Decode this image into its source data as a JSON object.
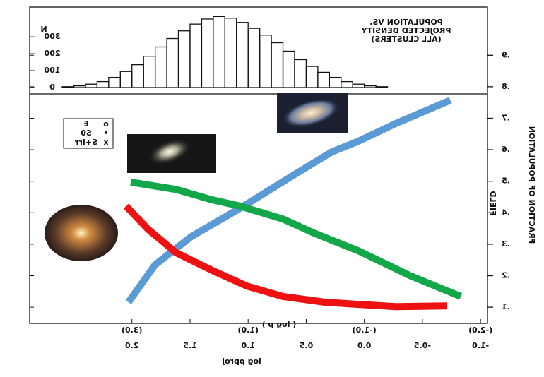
{
  "chart_data": [
    {
      "type": "histogram",
      "title_lines": [
        "POPULATION VS.",
        "PROJECTED DENSITY",
        "(ALL CLUSTERS)"
      ],
      "y_label": "N",
      "bins": [
        -0.2,
        -0.1,
        0.0,
        0.1,
        0.2,
        0.3,
        0.4,
        0.5,
        0.6,
        0.7,
        0.8,
        0.9,
        1.0,
        1.1,
        1.2,
        1.3,
        1.4,
        1.5,
        1.6,
        1.7,
        1.8,
        1.9,
        2.0,
        2.1,
        2.2,
        2.3,
        2.4,
        2.5,
        2.6
      ],
      "values": [
        5,
        10,
        20,
        35,
        60,
        90,
        125,
        165,
        215,
        265,
        310,
        350,
        385,
        410,
        420,
        405,
        375,
        335,
        290,
        240,
        185,
        135,
        95,
        60,
        35,
        20,
        10,
        5
      ],
      "color": "#111111",
      "xlim": [
        2.88,
        -1.06
      ],
      "ylim": [
        0,
        480
      ],
      "yticks": [
        0,
        100,
        200,
        300
      ]
    },
    {
      "type": "line",
      "x_label": "log ρproj",
      "x2_label": "( log ρ )",
      "y_label": "FRACTION OF POPULATION",
      "annotation": "FIELD",
      "legend": [
        {
          "marker": "o",
          "label": "E"
        },
        {
          "marker": "•",
          "label": "S0"
        },
        {
          "marker": "x",
          "label": "S+Irr"
        }
      ],
      "xlim": [
        2.88,
        -1.06
      ],
      "ylim": [
        0.033,
        1.053
      ],
      "xticks": [
        {
          "value": 2.0,
          "label": "2.0"
        },
        {
          "value": 1.5,
          "label": "1.5"
        },
        {
          "value": 1.0,
          "label": "1.0"
        },
        {
          "value": 0.5,
          "label": "0.5"
        },
        {
          "value": 0.0,
          "label": "0.0"
        },
        {
          "value": -0.5,
          "label": "-0.5"
        },
        {
          "value": -1.0,
          "label": "-1.0"
        }
      ],
      "x2ticks": [
        {
          "value": 2.0,
          "label": "(3.0)"
        },
        {
          "value": 1.0,
          "label": "(1.0)"
        },
        {
          "value": 0.0,
          "label": "(-1.0)"
        },
        {
          "value": -1.0,
          "label": "(-2.0)"
        }
      ],
      "yticks": [
        {
          "value": 0.1,
          "label": ".1"
        },
        {
          "value": 0.2,
          "label": ".2"
        },
        {
          "value": 0.3,
          "label": ".3"
        },
        {
          "value": 0.4,
          "label": ".4"
        },
        {
          "value": 0.5,
          "label": ".5"
        },
        {
          "value": 0.6,
          "label": ".6"
        },
        {
          "value": 0.7,
          "label": ".7"
        },
        {
          "value": 0.8,
          "label": ".8"
        },
        {
          "value": 0.9,
          "label": ".9"
        }
      ],
      "series": [
        {
          "color": "#5b9bd5",
          "x": [
            2.03,
            1.8,
            1.49,
            1.07,
            0.58,
            0.28,
            0.05,
            -0.27,
            -0.74
          ],
          "values": [
            0.116,
            0.235,
            0.324,
            0.414,
            0.526,
            0.593,
            0.627,
            0.683,
            0.757
          ]
        },
        {
          "color": "#12a84a",
          "x": [
            2.01,
            1.62,
            1.31,
            1.07,
            0.7,
            0.43,
            0.05,
            -0.39,
            -0.83
          ],
          "values": [
            0.497,
            0.474,
            0.441,
            0.421,
            0.38,
            0.335,
            0.279,
            0.201,
            0.134
          ]
        },
        {
          "color": "#ee1111",
          "x": [
            2.05,
            1.86,
            1.62,
            1.31,
            1.01,
            0.7,
            0.34,
            0.05,
            -0.27,
            -0.71
          ],
          "values": [
            0.421,
            0.347,
            0.273,
            0.217,
            0.167,
            0.134,
            0.116,
            0.109,
            0.102,
            0.104
          ]
        }
      ]
    }
  ]
}
